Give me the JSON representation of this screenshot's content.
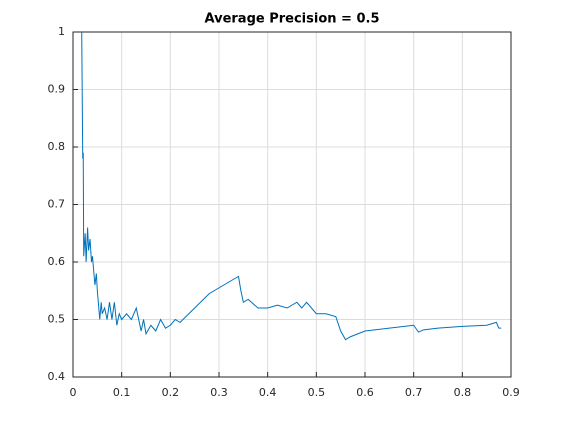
{
  "chart_data": {
    "type": "line",
    "title": "Average Precision = 0.5",
    "x": [
      0.018,
      0.018,
      0.02,
      0.021,
      0.022,
      0.025,
      0.027,
      0.03,
      0.032,
      0.035,
      0.038,
      0.04,
      0.045,
      0.048,
      0.05,
      0.055,
      0.058,
      0.06,
      0.065,
      0.07,
      0.075,
      0.08,
      0.085,
      0.09,
      0.095,
      0.1,
      0.11,
      0.12,
      0.13,
      0.14,
      0.145,
      0.15,
      0.16,
      0.17,
      0.18,
      0.19,
      0.2,
      0.21,
      0.22,
      0.25,
      0.28,
      0.3,
      0.32,
      0.34,
      0.345,
      0.35,
      0.36,
      0.38,
      0.4,
      0.42,
      0.44,
      0.46,
      0.47,
      0.48,
      0.5,
      0.52,
      0.54,
      0.55,
      0.56,
      0.57,
      0.6,
      0.65,
      0.7,
      0.71,
      0.72,
      0.75,
      0.8,
      0.85,
      0.87,
      0.875,
      0.88
    ],
    "values": [
      1,
      0.99,
      0.78,
      0.79,
      0.61,
      0.65,
      0.6,
      0.66,
      0.62,
      0.64,
      0.6,
      0.61,
      0.56,
      0.58,
      0.55,
      0.5,
      0.53,
      0.51,
      0.52,
      0.5,
      0.53,
      0.5,
      0.53,
      0.49,
      0.51,
      0.5,
      0.51,
      0.5,
      0.52,
      0.48,
      0.5,
      0.475,
      0.49,
      0.48,
      0.5,
      0.485,
      0.49,
      0.5,
      0.495,
      0.52,
      0.545,
      0.555,
      0.565,
      0.575,
      0.55,
      0.53,
      0.535,
      0.52,
      0.52,
      0.525,
      0.52,
      0.53,
      0.52,
      0.53,
      0.51,
      0.51,
      0.505,
      0.48,
      0.465,
      0.47,
      0.48,
      0.485,
      0.49,
      0.478,
      0.482,
      0.485,
      0.488,
      0.49,
      0.495,
      0.485,
      0.485
    ],
    "color": "#0072bd",
    "xlim": [
      0,
      0.9
    ],
    "xticks": [
      0,
      0.1,
      0.2,
      0.3,
      0.4,
      0.5,
      0.6,
      0.7,
      0.8,
      0.9
    ],
    "ylim": [
      0.4,
      1
    ],
    "yticks": [
      0.4,
      0.5,
      0.6,
      0.7,
      0.8,
      0.9,
      1
    ],
    "grid": true
  }
}
